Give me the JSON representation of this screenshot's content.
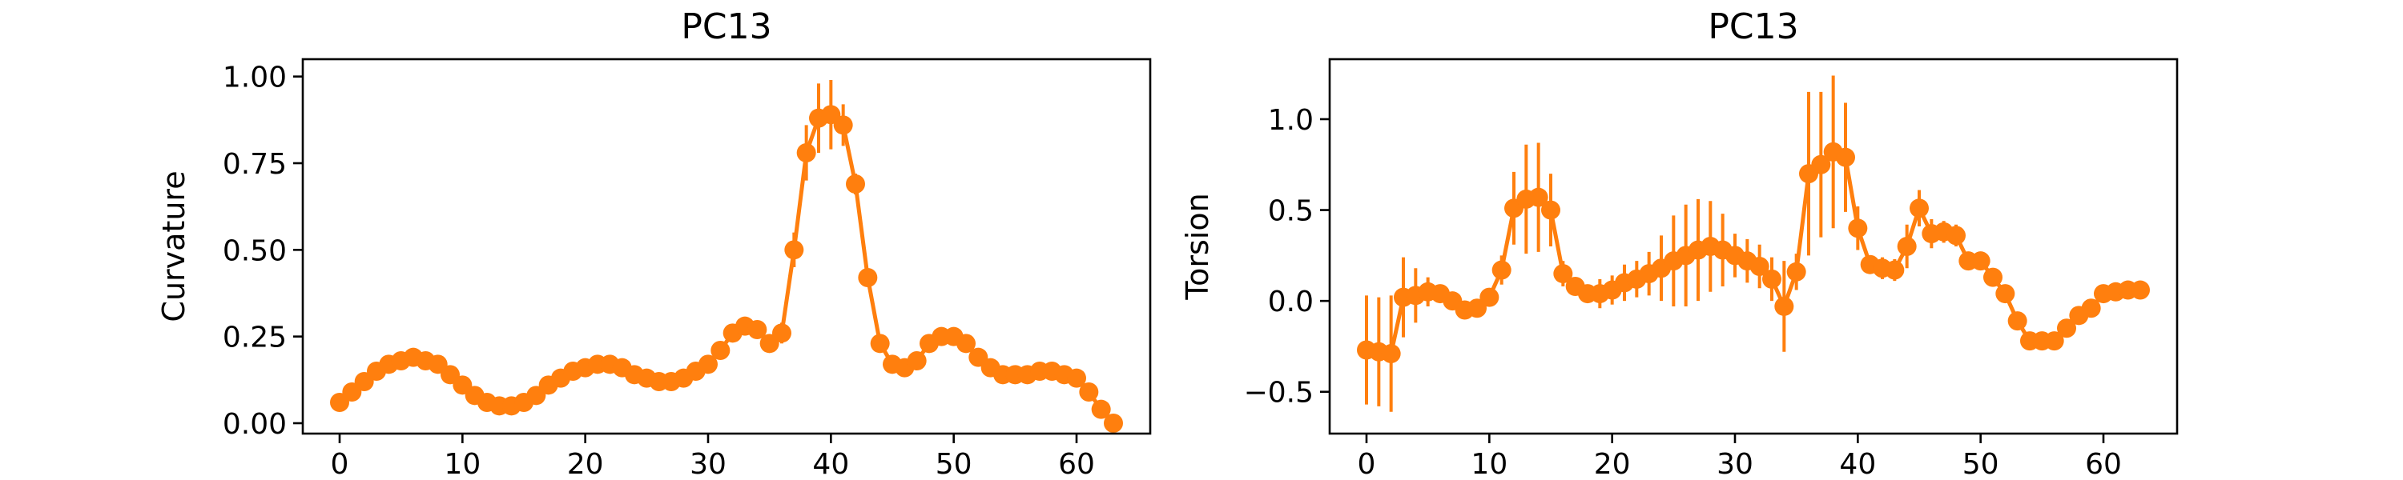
{
  "figure": {
    "background": "#ffffff",
    "series_color": "#ff7f0e"
  },
  "chart_data": [
    {
      "type": "line",
      "title": "PC13",
      "xlabel": "",
      "ylabel": "Curvature",
      "xlim": [
        -3,
        66
      ],
      "ylim": [
        -0.03,
        1.05
      ],
      "xticks": [
        0,
        10,
        20,
        30,
        40,
        50,
        60
      ],
      "yticks": [
        0.0,
        0.25,
        0.5,
        0.75,
        1.0
      ],
      "ytick_labels": [
        "0.00",
        "0.25",
        "0.50",
        "0.75",
        "1.00"
      ],
      "grid": false,
      "legend": "none",
      "marker": "circle",
      "color": "#ff7f0e",
      "x": [
        0,
        1,
        2,
        3,
        4,
        5,
        6,
        7,
        8,
        9,
        10,
        11,
        12,
        13,
        14,
        15,
        16,
        17,
        18,
        19,
        20,
        21,
        22,
        23,
        24,
        25,
        26,
        27,
        28,
        29,
        30,
        31,
        32,
        33,
        34,
        35,
        36,
        37,
        38,
        39,
        40,
        41,
        42,
        43,
        44,
        45,
        46,
        47,
        48,
        49,
        50,
        51,
        52,
        53,
        54,
        55,
        56,
        57,
        58,
        59,
        60,
        61,
        62,
        63
      ],
      "y": [
        0.06,
        0.09,
        0.12,
        0.15,
        0.17,
        0.18,
        0.19,
        0.18,
        0.17,
        0.14,
        0.11,
        0.08,
        0.06,
        0.05,
        0.05,
        0.06,
        0.08,
        0.11,
        0.13,
        0.15,
        0.16,
        0.17,
        0.17,
        0.16,
        0.14,
        0.13,
        0.12,
        0.12,
        0.13,
        0.15,
        0.17,
        0.21,
        0.26,
        0.28,
        0.27,
        0.23,
        0.26,
        0.5,
        0.78,
        0.88,
        0.89,
        0.86,
        0.69,
        0.42,
        0.23,
        0.17,
        0.16,
        0.18,
        0.23,
        0.25,
        0.25,
        0.23,
        0.19,
        0.16,
        0.14,
        0.14,
        0.14,
        0.15,
        0.15,
        0.14,
        0.13,
        0.09,
        0.04,
        0.0
      ],
      "yerr": [
        0.01,
        0.01,
        0.01,
        0.01,
        0.01,
        0.01,
        0.01,
        0.01,
        0.01,
        0.01,
        0.01,
        0.01,
        0.01,
        0.01,
        0.01,
        0.01,
        0.01,
        0.01,
        0.01,
        0.01,
        0.01,
        0.02,
        0.01,
        0.01,
        0.01,
        0.01,
        0.01,
        0.01,
        0.01,
        0.01,
        0.01,
        0.02,
        0.02,
        0.02,
        0.02,
        0.02,
        0.03,
        0.05,
        0.08,
        0.1,
        0.1,
        0.06,
        0.03,
        0.02,
        0.02,
        0.02,
        0.01,
        0.01,
        0.02,
        0.02,
        0.02,
        0.02,
        0.01,
        0.01,
        0.01,
        0.01,
        0.01,
        0.01,
        0.01,
        0.01,
        0.01,
        0.01,
        0.01,
        0.01
      ]
    },
    {
      "type": "line",
      "title": "PC13",
      "xlabel": "",
      "ylabel": "Torsion",
      "xlim": [
        -3,
        66
      ],
      "ylim": [
        -0.73,
        1.33
      ],
      "xticks": [
        0,
        10,
        20,
        30,
        40,
        50,
        60
      ],
      "yticks": [
        -0.5,
        0.0,
        0.5,
        1.0
      ],
      "ytick_labels": [
        "−0.5",
        "0.0",
        "0.5",
        "1.0"
      ],
      "grid": false,
      "legend": "none",
      "marker": "circle",
      "color": "#ff7f0e",
      "x": [
        0,
        1,
        2,
        3,
        4,
        5,
        6,
        7,
        8,
        9,
        10,
        11,
        12,
        13,
        14,
        15,
        16,
        17,
        18,
        19,
        20,
        21,
        22,
        23,
        24,
        25,
        26,
        27,
        28,
        29,
        30,
        31,
        32,
        33,
        34,
        35,
        36,
        37,
        38,
        39,
        40,
        41,
        42,
        43,
        44,
        45,
        46,
        47,
        48,
        49,
        50,
        51,
        52,
        53,
        54,
        55,
        56,
        57,
        58,
        59,
        60,
        61,
        62,
        63
      ],
      "y": [
        -0.27,
        -0.28,
        -0.29,
        0.02,
        0.03,
        0.05,
        0.04,
        0.0,
        -0.05,
        -0.04,
        0.02,
        0.17,
        0.51,
        0.56,
        0.57,
        0.5,
        0.15,
        0.08,
        0.04,
        0.04,
        0.06,
        0.1,
        0.12,
        0.15,
        0.18,
        0.22,
        0.25,
        0.28,
        0.3,
        0.28,
        0.25,
        0.22,
        0.19,
        0.12,
        -0.03,
        0.16,
        0.7,
        0.75,
        0.82,
        0.79,
        0.4,
        0.2,
        0.18,
        0.17,
        0.3,
        0.51,
        0.37,
        0.38,
        0.36,
        0.22,
        0.22,
        0.13,
        0.04,
        -0.11,
        -0.22,
        -0.22,
        -0.22,
        -0.15,
        -0.08,
        -0.04,
        0.04,
        0.05,
        0.06,
        0.06
      ],
      "yerr": [
        0.3,
        0.3,
        0.32,
        0.22,
        0.15,
        0.08,
        0.05,
        0.03,
        0.03,
        0.03,
        0.05,
        0.08,
        0.2,
        0.3,
        0.3,
        0.2,
        0.07,
        0.05,
        0.05,
        0.08,
        0.08,
        0.1,
        0.1,
        0.12,
        0.18,
        0.25,
        0.28,
        0.28,
        0.25,
        0.2,
        0.12,
        0.12,
        0.12,
        0.12,
        0.25,
        0.1,
        0.45,
        0.4,
        0.42,
        0.3,
        0.12,
        0.04,
        0.06,
        0.06,
        0.12,
        0.1,
        0.08,
        0.06,
        0.06,
        0.03,
        0.03,
        0.03,
        0.02,
        0.02,
        0.02,
        0.02,
        0.02,
        0.02,
        0.02,
        0.02,
        0.02,
        0.02,
        0.02,
        0.02
      ]
    }
  ]
}
